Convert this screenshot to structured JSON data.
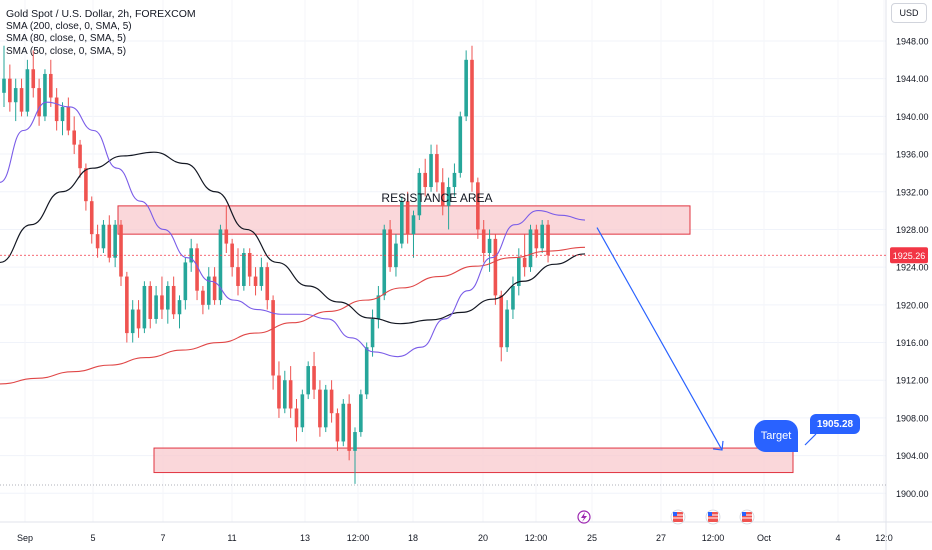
{
  "legend": {
    "title": "Gold Spot / U.S. Dollar, 2h, FOREXCOM",
    "lines": [
      "SMA (200, close, 0, SMA, 5)",
      "SMA (80, close, 0, SMA, 5)",
      "SMA (50, close, 0, SMA, 5)"
    ]
  },
  "currency_button": "USD",
  "chart_data": {
    "type": "candlestick",
    "symbol": "Gold Spot / U.S. Dollar",
    "interval": "2h",
    "exchange": "FOREXCOM",
    "y_axis": {
      "ticks": [
        "1900.00",
        "1904.00",
        "1908.00",
        "1912.00",
        "1916.00",
        "1920.00",
        "1924.00",
        "1928.00",
        "1932.00",
        "1936.00",
        "1940.00",
        "1944.00",
        "1948.00"
      ],
      "range": [
        1899.5,
        1951.5
      ]
    },
    "x_axis": {
      "ticks": [
        "Sep",
        "5",
        "7",
        "11",
        "13",
        "12:00",
        "18",
        "20",
        "12:00",
        "25",
        "27",
        "12:00",
        "Oct",
        "4",
        "12:0"
      ]
    },
    "current_price": "1925.26",
    "candles_approx": [
      {
        "o": 1942.5,
        "h": 1947.5,
        "l": 1941.0,
        "c": 1944.0
      },
      {
        "o": 1944.0,
        "h": 1945.5,
        "l": 1940.5,
        "c": 1941.5
      },
      {
        "o": 1941.5,
        "h": 1944.0,
        "l": 1939.5,
        "c": 1943.0
      },
      {
        "o": 1943.0,
        "h": 1944.0,
        "l": 1940.0,
        "c": 1940.5
      },
      {
        "o": 1940.5,
        "h": 1946.0,
        "l": 1940.0,
        "c": 1945.0
      },
      {
        "o": 1945.0,
        "h": 1947.0,
        "l": 1942.0,
        "c": 1943.0
      },
      {
        "o": 1943.0,
        "h": 1944.0,
        "l": 1939.0,
        "c": 1940.0
      },
      {
        "o": 1940.0,
        "h": 1945.0,
        "l": 1939.5,
        "c": 1944.5
      },
      {
        "o": 1944.5,
        "h": 1946.0,
        "l": 1941.0,
        "c": 1942.0
      },
      {
        "o": 1942.0,
        "h": 1943.0,
        "l": 1938.5,
        "c": 1939.5
      },
      {
        "o": 1939.5,
        "h": 1941.5,
        "l": 1938.0,
        "c": 1941.0
      },
      {
        "o": 1941.0,
        "h": 1942.0,
        "l": 1938.0,
        "c": 1938.5
      },
      {
        "o": 1938.5,
        "h": 1940.0,
        "l": 1936.0,
        "c": 1937.0
      },
      {
        "o": 1937.0,
        "h": 1937.5,
        "l": 1933.5,
        "c": 1934.5
      },
      {
        "o": 1934.5,
        "h": 1935.0,
        "l": 1930.0,
        "c": 1931.0
      },
      {
        "o": 1931.0,
        "h": 1931.5,
        "l": 1926.5,
        "c": 1927.5
      },
      {
        "o": 1927.5,
        "h": 1928.5,
        "l": 1925.0,
        "c": 1926.0
      },
      {
        "o": 1926.0,
        "h": 1929.0,
        "l": 1925.5,
        "c": 1928.5
      },
      {
        "o": 1928.5,
        "h": 1929.5,
        "l": 1924.5,
        "c": 1925.0
      },
      {
        "o": 1925.0,
        "h": 1929.0,
        "l": 1924.0,
        "c": 1928.5
      },
      {
        "o": 1928.5,
        "h": 1929.0,
        "l": 1922.0,
        "c": 1923.0
      },
      {
        "o": 1923.0,
        "h": 1923.5,
        "l": 1916.0,
        "c": 1917.0
      },
      {
        "o": 1917.0,
        "h": 1920.5,
        "l": 1916.0,
        "c": 1919.5
      },
      {
        "o": 1919.5,
        "h": 1920.5,
        "l": 1916.5,
        "c": 1917.5
      },
      {
        "o": 1917.5,
        "h": 1922.5,
        "l": 1917.0,
        "c": 1922.0
      },
      {
        "o": 1922.0,
        "h": 1922.5,
        "l": 1917.5,
        "c": 1918.5
      },
      {
        "o": 1918.5,
        "h": 1922.0,
        "l": 1918.0,
        "c": 1921.0
      },
      {
        "o": 1921.0,
        "h": 1923.0,
        "l": 1918.5,
        "c": 1919.5
      },
      {
        "o": 1919.5,
        "h": 1922.5,
        "l": 1918.0,
        "c": 1922.0
      },
      {
        "o": 1922.0,
        "h": 1923.0,
        "l": 1918.5,
        "c": 1919.0
      },
      {
        "o": 1919.0,
        "h": 1921.0,
        "l": 1917.5,
        "c": 1920.5
      },
      {
        "o": 1920.5,
        "h": 1925.0,
        "l": 1919.5,
        "c": 1924.5
      },
      {
        "o": 1924.5,
        "h": 1927.0,
        "l": 1923.5,
        "c": 1926.0
      },
      {
        "o": 1926.0,
        "h": 1926.5,
        "l": 1920.5,
        "c": 1921.5
      },
      {
        "o": 1921.5,
        "h": 1922.0,
        "l": 1919.0,
        "c": 1920.0
      },
      {
        "o": 1920.0,
        "h": 1924.0,
        "l": 1919.5,
        "c": 1923.0
      },
      {
        "o": 1923.0,
        "h": 1924.0,
        "l": 1920.0,
        "c": 1920.5
      },
      {
        "o": 1920.5,
        "h": 1928.5,
        "l": 1920.0,
        "c": 1928.0
      },
      {
        "o": 1928.0,
        "h": 1930.5,
        "l": 1925.5,
        "c": 1926.5
      },
      {
        "o": 1926.5,
        "h": 1927.0,
        "l": 1923.0,
        "c": 1924.0
      },
      {
        "o": 1924.0,
        "h": 1926.0,
        "l": 1921.0,
        "c": 1922.0
      },
      {
        "o": 1922.0,
        "h": 1926.0,
        "l": 1921.5,
        "c": 1925.5
      },
      {
        "o": 1925.5,
        "h": 1926.0,
        "l": 1922.0,
        "c": 1923.0
      },
      {
        "o": 1923.0,
        "h": 1924.0,
        "l": 1921.0,
        "c": 1922.0
      },
      {
        "o": 1922.0,
        "h": 1925.0,
        "l": 1921.5,
        "c": 1924.0
      },
      {
        "o": 1924.0,
        "h": 1924.5,
        "l": 1919.5,
        "c": 1920.5
      },
      {
        "o": 1920.5,
        "h": 1921.0,
        "l": 1911.0,
        "c": 1912.5
      },
      {
        "o": 1912.5,
        "h": 1914.0,
        "l": 1908.0,
        "c": 1909.0
      },
      {
        "o": 1909.0,
        "h": 1913.0,
        "l": 1908.5,
        "c": 1912.0
      },
      {
        "o": 1912.0,
        "h": 1913.5,
        "l": 1908.0,
        "c": 1909.0
      },
      {
        "o": 1909.0,
        "h": 1910.0,
        "l": 1905.5,
        "c": 1907.0
      },
      {
        "o": 1907.0,
        "h": 1911.0,
        "l": 1906.5,
        "c": 1910.5
      },
      {
        "o": 1910.5,
        "h": 1914.0,
        "l": 1910.0,
        "c": 1913.5
      },
      {
        "o": 1913.5,
        "h": 1915.0,
        "l": 1910.0,
        "c": 1911.0
      },
      {
        "o": 1911.0,
        "h": 1912.0,
        "l": 1906.0,
        "c": 1907.0
      },
      {
        "o": 1907.0,
        "h": 1911.5,
        "l": 1906.5,
        "c": 1911.0
      },
      {
        "o": 1911.0,
        "h": 1912.0,
        "l": 1907.5,
        "c": 1908.5
      },
      {
        "o": 1908.5,
        "h": 1909.0,
        "l": 1904.5,
        "c": 1905.5
      },
      {
        "o": 1905.5,
        "h": 1910.0,
        "l": 1905.0,
        "c": 1909.5
      },
      {
        "o": 1909.5,
        "h": 1910.5,
        "l": 1903.5,
        "c": 1904.5
      },
      {
        "o": 1904.5,
        "h": 1907.0,
        "l": 1901.0,
        "c": 1906.5
      },
      {
        "o": 1906.5,
        "h": 1911.0,
        "l": 1906.0,
        "c": 1910.5
      },
      {
        "o": 1910.5,
        "h": 1916.0,
        "l": 1910.0,
        "c": 1915.5
      },
      {
        "o": 1915.5,
        "h": 1919.5,
        "l": 1914.5,
        "c": 1918.5
      },
      {
        "o": 1918.5,
        "h": 1922.0,
        "l": 1917.5,
        "c": 1921.0
      },
      {
        "o": 1921.0,
        "h": 1928.5,
        "l": 1920.5,
        "c": 1928.0
      },
      {
        "o": 1928.0,
        "h": 1929.0,
        "l": 1923.5,
        "c": 1924.0
      },
      {
        "o": 1924.0,
        "h": 1927.5,
        "l": 1923.0,
        "c": 1926.5
      },
      {
        "o": 1926.5,
        "h": 1931.5,
        "l": 1926.0,
        "c": 1931.0
      },
      {
        "o": 1931.0,
        "h": 1932.0,
        "l": 1926.5,
        "c": 1927.5
      },
      {
        "o": 1927.5,
        "h": 1930.0,
        "l": 1925.0,
        "c": 1929.5
      },
      {
        "o": 1929.5,
        "h": 1934.5,
        "l": 1929.0,
        "c": 1934.0
      },
      {
        "o": 1934.0,
        "h": 1935.5,
        "l": 1931.5,
        "c": 1932.5
      },
      {
        "o": 1932.5,
        "h": 1937.0,
        "l": 1932.0,
        "c": 1936.0
      },
      {
        "o": 1936.0,
        "h": 1937.0,
        "l": 1932.0,
        "c": 1933.0
      },
      {
        "o": 1933.0,
        "h": 1934.5,
        "l": 1929.5,
        "c": 1930.5
      },
      {
        "o": 1930.5,
        "h": 1933.5,
        "l": 1928.0,
        "c": 1932.5
      },
      {
        "o": 1932.5,
        "h": 1935.0,
        "l": 1931.5,
        "c": 1934.0
      },
      {
        "o": 1934.0,
        "h": 1940.5,
        "l": 1933.5,
        "c": 1940.0
      },
      {
        "o": 1940.0,
        "h": 1947.0,
        "l": 1939.5,
        "c": 1946.0
      },
      {
        "o": 1946.0,
        "h": 1947.5,
        "l": 1932.0,
        "c": 1933.0
      },
      {
        "o": 1933.0,
        "h": 1933.5,
        "l": 1927.0,
        "c": 1928.0
      },
      {
        "o": 1928.0,
        "h": 1929.0,
        "l": 1924.5,
        "c": 1925.5
      },
      {
        "o": 1925.5,
        "h": 1928.0,
        "l": 1923.5,
        "c": 1927.0
      },
      {
        "o": 1927.0,
        "h": 1927.5,
        "l": 1920.0,
        "c": 1921.0
      },
      {
        "o": 1921.0,
        "h": 1921.5,
        "l": 1914.0,
        "c": 1915.5
      },
      {
        "o": 1915.5,
        "h": 1920.5,
        "l": 1915.0,
        "c": 1919.5
      },
      {
        "o": 1919.5,
        "h": 1923.0,
        "l": 1918.5,
        "c": 1922.0
      },
      {
        "o": 1922.0,
        "h": 1926.0,
        "l": 1921.0,
        "c": 1925.0
      },
      {
        "o": 1925.0,
        "h": 1927.5,
        "l": 1923.0,
        "c": 1924.0
      },
      {
        "o": 1924.0,
        "h": 1928.5,
        "l": 1923.5,
        "c": 1928.0
      },
      {
        "o": 1928.0,
        "h": 1928.5,
        "l": 1925.0,
        "c": 1926.0
      },
      {
        "o": 1926.0,
        "h": 1929.0,
        "l": 1925.5,
        "c": 1928.5
      },
      {
        "o": 1928.5,
        "h": 1929.0,
        "l": 1924.5,
        "c": 1925.26
      }
    ],
    "sma_200_approx": [
      1911.6,
      1912.2,
      1912.9,
      1913.6,
      1914.4,
      1915.2,
      1916.0,
      1917.0,
      1918.1,
      1919.3,
      1920.5,
      1921.8,
      1923.0,
      1924.1,
      1925.0,
      1925.7,
      1926.1
    ],
    "sma_80_approx": [
      1924.5,
      1928.5,
      1932.0,
      1934.5,
      1935.8,
      1936.2,
      1935.0,
      1932.0,
      1928.0,
      1924.5,
      1922.0,
      1920.3,
      1918.6,
      1918.0,
      1918.4,
      1919.2,
      1920.6,
      1922.5,
      1924.3,
      1925.4
    ],
    "sma_50_approx": [
      1933.0,
      1938.5,
      1941.5,
      1941.0,
      1938.5,
      1934.5,
      1931.0,
      1928.0,
      1925.0,
      1922.5,
      1920.5,
      1919.5,
      1919.0,
      1919.0,
      1918.5,
      1916.5,
      1915.0,
      1914.5,
      1915.5,
      1918.5,
      1921.5,
      1925.0,
      1928.5,
      1930.0,
      1929.5,
      1929.0
    ],
    "annotations": {
      "resistance_label": "RESISTANCE AREA",
      "resistance_zone": [
        1927.5,
        1930.5
      ],
      "support_zone": [
        1902.2,
        1904.8
      ],
      "forecast_arrow": {
        "from_price": 1928.2,
        "to_price": 1904.6
      },
      "target_label": "Target",
      "target_price": "1905.28"
    },
    "colors": {
      "bull": "#26a69a",
      "bear": "#ef5350",
      "sma200": "#e04747",
      "sma80": "#131722",
      "sma50": "#7a5ce8",
      "zone_fill": "#f8c9cd",
      "zone_border": "#e0333f",
      "arrow": "#2962ff",
      "price_tag": "#f23645"
    }
  }
}
